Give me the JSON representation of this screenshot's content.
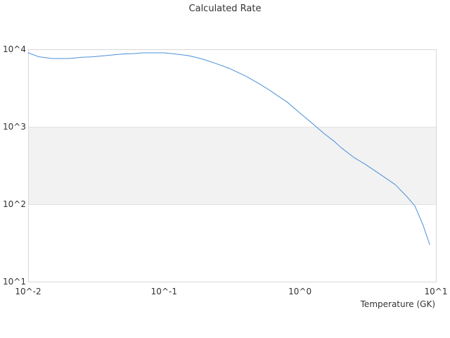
{
  "chart_data": {
    "type": "line",
    "title": "Calculated Rate",
    "xlabel": "Temperature (GK)",
    "ylabel": "",
    "x_scale": "log",
    "y_scale": "log",
    "xlim": [
      0.01,
      10
    ],
    "ylim": [
      10,
      10000
    ],
    "x_tick_labels": [
      "10^-2",
      "10^-1",
      "10^0",
      "10^1"
    ],
    "y_tick_labels": [
      "10^1",
      "10^2",
      "10^3",
      "10^4"
    ],
    "x_tick_values": [
      0.01,
      0.1,
      1,
      10
    ],
    "y_tick_values": [
      10,
      100,
      1000,
      10000
    ],
    "grid": true,
    "alternating_bands": true,
    "series": [
      {
        "color": "#4a90d9",
        "x": [
          0.01,
          0.012,
          0.015,
          0.02,
          0.025,
          0.03,
          0.04,
          0.05,
          0.06,
          0.07,
          0.08,
          0.1,
          0.12,
          0.15,
          0.18,
          0.2,
          0.25,
          0.3,
          0.4,
          0.5,
          0.6,
          0.7,
          0.8,
          1.0,
          1.2,
          1.5,
          1.8,
          2.0,
          2.5,
          3.0,
          4.0,
          5.0,
          6.0,
          7.0,
          8.0,
          9.0
        ],
        "y": [
          9000,
          8000,
          7600,
          7600,
          7900,
          8000,
          8400,
          8700,
          8800,
          9000,
          9000,
          9000,
          8700,
          8300,
          7700,
          7300,
          6400,
          5700,
          4500,
          3600,
          2950,
          2450,
          2100,
          1500,
          1150,
          820,
          640,
          540,
          400,
          330,
          235,
          180,
          130,
          95,
          55,
          30
        ]
      }
    ]
  }
}
